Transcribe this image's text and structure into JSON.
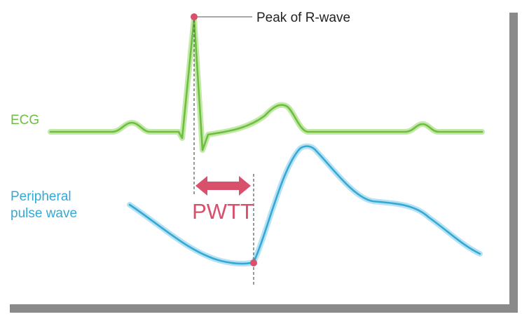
{
  "labels": {
    "r_peak": "Peak of R-wave",
    "ecg": "ECG",
    "pulse_line1": "Peripheral",
    "pulse_line2": "pulse wave",
    "pwtt": "PWTT"
  },
  "colors": {
    "ecg": "#6cbf3f",
    "ecg_glow": "#c4e8a8",
    "pulse": "#35a9d6",
    "pulse_glow": "#b6e2f3",
    "marker": "#d8506c",
    "leader": "#555555",
    "shadow": "#8a8a8a"
  }
}
